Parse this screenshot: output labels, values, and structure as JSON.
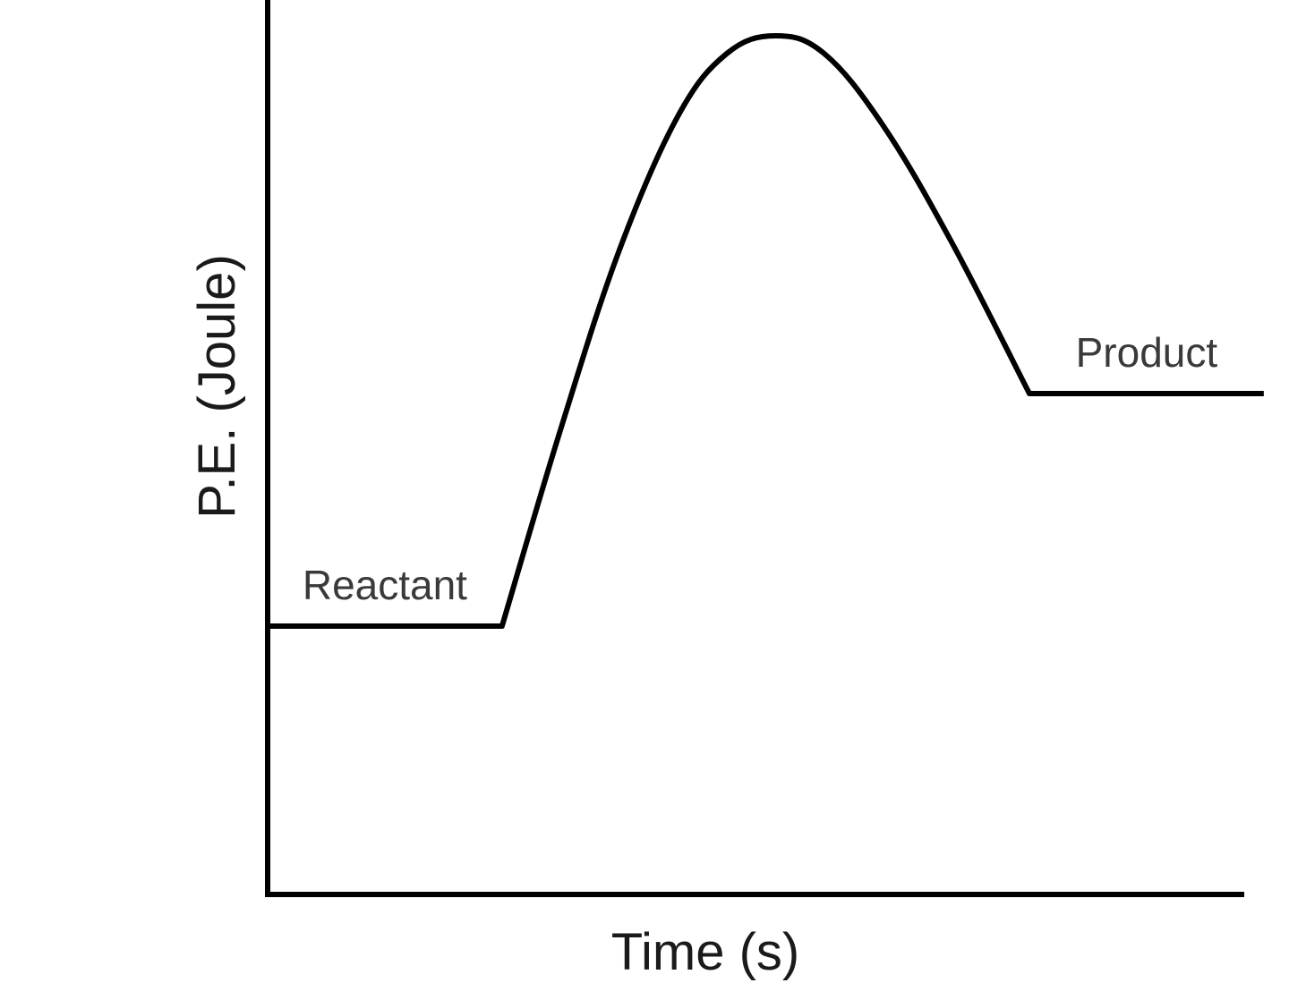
{
  "chart_data": {
    "type": "line",
    "title": "",
    "xlabel": "Time (s)",
    "ylabel": "P.E. (Joule)",
    "grid": false,
    "x_ticks": [],
    "y_ticks": [],
    "series": [
      {
        "values": [
          {
            "x": 0,
            "y": 30
          },
          {
            "x": 24,
            "y": 30
          },
          {
            "x": 30,
            "y": 52
          },
          {
            "x": 36,
            "y": 72
          },
          {
            "x": 42,
            "y": 87
          },
          {
            "x": 47,
            "y": 94
          },
          {
            "x": 52,
            "y": 96
          },
          {
            "x": 57,
            "y": 94
          },
          {
            "x": 63,
            "y": 86
          },
          {
            "x": 70,
            "y": 73
          },
          {
            "x": 78,
            "y": 56
          },
          {
            "x": 102,
            "y": 56
          }
        ]
      }
    ],
    "annotations": [
      {
        "text": "Reactant",
        "x": 12,
        "y": 30
      },
      {
        "text": "Product",
        "x": 90,
        "y": 56
      }
    ],
    "xlim": [
      0,
      100
    ],
    "ylim": [
      0,
      100
    ],
    "line_color": "#000000"
  }
}
